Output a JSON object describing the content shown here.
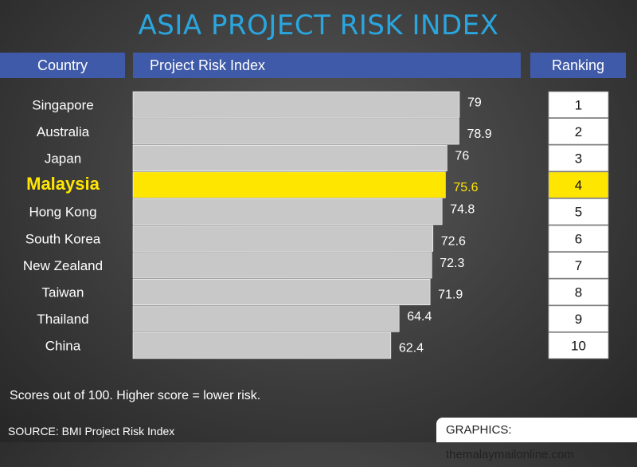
{
  "title": "ASIA PROJECT RISK INDEX",
  "headers": {
    "country": "Country",
    "index": "Project Risk Index",
    "ranking": "Ranking"
  },
  "note": "Scores out of 100. Higher score = lower risk.",
  "source": "SOURCE: BMI Project Risk Index",
  "credit": "GRAPHICS: themalaymailonline.com",
  "colors": {
    "title": "#2aa6df",
    "header_bg": "#3f5aa8",
    "bar": "#c8c8c8",
    "highlight": "#ffe600"
  },
  "chart_data": {
    "type": "bar",
    "orientation": "horizontal",
    "title": "ASIA PROJECT RISK INDEX",
    "categories": [
      "Singapore",
      "Australia",
      "Japan",
      "Malaysia",
      "Hong Kong",
      "South Korea",
      "New Zealand",
      "Taiwan",
      "Thailand",
      "China"
    ],
    "values": [
      79,
      78.9,
      76,
      75.6,
      74.8,
      72.6,
      72.3,
      71.9,
      64.4,
      62.4
    ],
    "value_labels": [
      "79",
      "78.9",
      "76",
      "75.6",
      "74.8",
      "72.6",
      "72.3",
      "71.9",
      "64.4",
      "62.4"
    ],
    "rankings": [
      "1",
      "2",
      "3",
      "4",
      "5",
      "6",
      "7",
      "8",
      "9",
      "10"
    ],
    "highlight": "Malaysia",
    "xlim": [
      0,
      100
    ]
  }
}
